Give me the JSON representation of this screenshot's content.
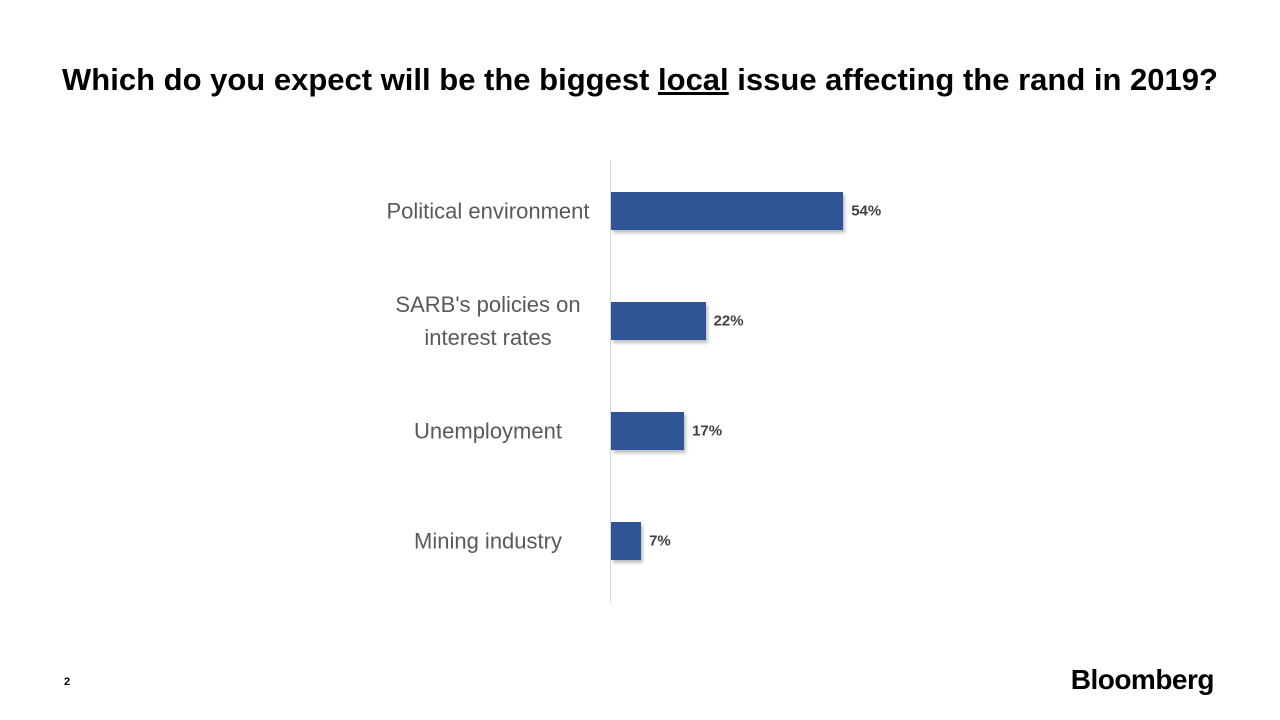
{
  "chart_data": {
    "type": "bar",
    "orientation": "horizontal",
    "title": [
      "Which do you expect will be the biggest",
      "local",
      "issue affecting the rand in 2019?"
    ],
    "categories": [
      "Political environment",
      "SARB's policies on interest rates",
      "Unemployment",
      "Mining industry"
    ],
    "values": [
      54,
      22,
      17,
      7
    ],
    "value_labels": [
      "54%",
      "22%",
      "17%",
      "7%"
    ],
    "color": "#2f5597",
    "xlim": [
      0,
      100
    ]
  },
  "footer": {
    "page_number": "2",
    "brand": "Bloomberg"
  }
}
